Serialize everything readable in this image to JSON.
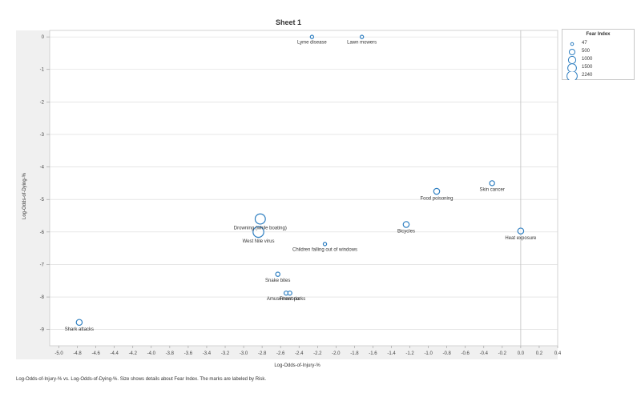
{
  "sheet": {
    "title": "Sheet 1"
  },
  "caption": "Log-Odds-of-Injury-% vs. Log-Odds-of-Dying-%.  Size shows details about  Fear Index.  The marks are labeled by Risk.",
  "colors": {
    "mark": "#2f7fc1",
    "grid": "#d8d8d8",
    "axis_panel": "#f0f0f0",
    "zero_line": "#c0c0c0"
  },
  "legend": {
    "title": "Fear Index",
    "items": [
      {
        "label": "47",
        "value": 47
      },
      {
        "label": "500",
        "value": 500
      },
      {
        "label": "1000",
        "value": 1000
      },
      {
        "label": "1500",
        "value": 1500
      },
      {
        "label": "2240",
        "value": 2240
      }
    ]
  },
  "chart_data": {
    "type": "scatter",
    "title": "Sheet 1",
    "xlabel": "Log-Odds-of-Injury-%",
    "ylabel": "Log-Odds-of-Dying-%",
    "xlim": [
      -5.1,
      0.4
    ],
    "ylim": [
      -9.5,
      0.2
    ],
    "xticks": [
      "-5.0",
      "-4.8",
      "-4.6",
      "-4.4",
      "-4.2",
      "-4.0",
      "-3.8",
      "-3.6",
      "-3.4",
      "-3.2",
      "-3.0",
      "-2.8",
      "-2.6",
      "-2.4",
      "-2.2",
      "-2.0",
      "-1.8",
      "-1.6",
      "-1.4",
      "-1.2",
      "-1.0",
      "-0.8",
      "-0.6",
      "-0.4",
      "-0.2",
      "0.0",
      "0.2",
      "0.4"
    ],
    "yticks": [
      "0",
      "-1",
      "-2",
      "-3",
      "-4",
      "-5",
      "-6",
      "-7",
      "-8",
      "-9"
    ],
    "grid": true,
    "size_field": "Fear Index",
    "label_field": "Risk",
    "legend_position": "top-right",
    "points": [
      {
        "label": "Lyme disease",
        "x": -2.26,
        "y": 0.0,
        "size": 47,
        "label_pos": "below"
      },
      {
        "label": "Lawn mowers",
        "x": -1.72,
        "y": 0.0,
        "size": 47,
        "label_pos": "below"
      },
      {
        "label": "Skin cancer",
        "x": -0.31,
        "y": -4.5,
        "size": 200,
        "label_pos": "below"
      },
      {
        "label": "Food poisoning",
        "x": -0.91,
        "y": -4.75,
        "size": 350,
        "label_pos": "below"
      },
      {
        "label": "Heat exposure",
        "x": 0.0,
        "y": -5.97,
        "size": 350,
        "label_pos": "below"
      },
      {
        "label": "Bicycles",
        "x": -1.24,
        "y": -5.77,
        "size": 350,
        "label_pos": "below"
      },
      {
        "label": "Drowning (while boating)",
        "x": -2.82,
        "y": -5.6,
        "size": 1500,
        "label_pos": "below"
      },
      {
        "label": "West Nile virus",
        "x": -2.84,
        "y": -6.0,
        "size": 1700,
        "label_pos": "below"
      },
      {
        "label": "Children falling out of windows",
        "x": -2.12,
        "y": -6.37,
        "size": 47,
        "label_pos": "below"
      },
      {
        "label": "Snake bites",
        "x": -2.63,
        "y": -7.3,
        "size": 120,
        "label_pos": "below"
      },
      {
        "label": "Amusement parks",
        "x": -2.54,
        "y": -7.88,
        "size": 100,
        "label_pos": "below"
      },
      {
        "label": "Fireworks",
        "x": -2.5,
        "y": -7.88,
        "size": 100,
        "label_pos": "below"
      },
      {
        "label": "Shark attacks",
        "x": -4.78,
        "y": -8.78,
        "size": 350,
        "label_pos": "below"
      }
    ]
  }
}
